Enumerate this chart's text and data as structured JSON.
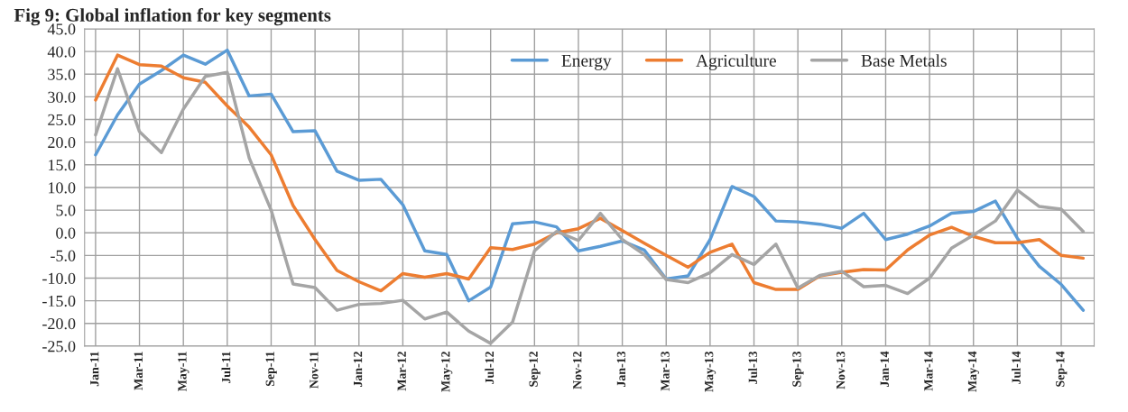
{
  "chart_data": {
    "type": "line",
    "title": "Fig 9: Global inflation for key segments",
    "categories": [
      "Jan-11",
      null,
      "Mar-11",
      null,
      "May-11",
      null,
      "Jul-11",
      null,
      "Sep-11",
      null,
      "Nov-11",
      null,
      "Jan-12",
      null,
      "Mar-12",
      null,
      "May-12",
      null,
      "Jul-12",
      null,
      "Sep-12",
      null,
      "Nov-12",
      null,
      "Jan-13",
      null,
      "Mar-13",
      null,
      "May-13",
      null,
      "Jul-13",
      null,
      "Sep-13",
      null,
      "Nov-13",
      null,
      "Jan-14",
      null,
      "Mar-14",
      null,
      "May-14",
      null,
      "Jul-14",
      null,
      "Sep-14",
      null
    ],
    "series": [
      {
        "name": "Energy",
        "color": "#5b9bd5",
        "values": [
          17.2,
          26,
          32.8,
          35.8,
          39.2,
          37.2,
          40.3,
          30.2,
          30.6,
          22.3,
          22.5,
          13.6,
          11.6,
          11.8,
          6.2,
          -4,
          -4.8,
          -15,
          -12,
          2,
          2.4,
          1.3,
          -4,
          -3,
          -1.8,
          -3.8,
          -10.2,
          -9.5,
          -1.5,
          10.2,
          8,
          2.6,
          2.4,
          1.9,
          1,
          4.3,
          -1.5,
          -0.3,
          1.5,
          4.3,
          4.7,
          7,
          -1.2,
          -7.4,
          -11.4,
          -17.1
        ]
      },
      {
        "name": "Agriculture",
        "color": "#ed7d31",
        "values": [
          29.3,
          39.2,
          37.1,
          36.8,
          34.2,
          33.2,
          28,
          23.3,
          17.2,
          6,
          -1.5,
          -8.3,
          -10.8,
          -12.8,
          -9,
          -9.8,
          -9,
          -10.2,
          -3.3,
          -3.7,
          -2.5,
          0,
          0.9,
          3.2,
          0.5,
          -2.3,
          -5,
          -7.6,
          -4.3,
          -2.5,
          -11,
          -12.5,
          -12.5,
          -9.5,
          -8.7,
          -8.1,
          -8.2,
          -3.8,
          -0.5,
          1.2,
          -0.8,
          -2.2,
          -2.2,
          -1.5,
          -5,
          -5.6
        ]
      },
      {
        "name": "Base Metals",
        "color": "#a5a5a5",
        "values": [
          21.6,
          36.2,
          22.3,
          17.7,
          27.3,
          34.5,
          35.4,
          16.5,
          5,
          -11.3,
          -12.1,
          -17.1,
          -15.8,
          -15.6,
          -14.9,
          -19,
          -17.5,
          -21.7,
          -24.4,
          -19.7,
          -4,
          0.3,
          -1.7,
          4.3,
          -1.5,
          -4.8,
          -10.3,
          -11,
          -8.8,
          -4.8,
          -7,
          -2.5,
          -12.2,
          -9.4,
          -8.5,
          -11.9,
          -11.6,
          -13.4,
          -10,
          -3.4,
          -0.5,
          2.6,
          9.4,
          5.8,
          5.2,
          0.3
        ]
      }
    ],
    "ylim": [
      -25,
      45
    ],
    "yticks": [
      {
        "value": -25,
        "label": "-25.0"
      },
      {
        "value": -20,
        "label": "-20.0"
      },
      {
        "value": -15,
        "label": "-15.0"
      },
      {
        "value": -10,
        "label": "-10.0"
      },
      {
        "value": -5,
        "label": "-5.0"
      },
      {
        "value": 0,
        "label": "0.0"
      },
      {
        "value": 5,
        "label": "5.0"
      },
      {
        "value": 10,
        "label": "10.0"
      },
      {
        "value": 15,
        "label": "15.0"
      },
      {
        "value": 20,
        "label": "20.0"
      },
      {
        "value": 25,
        "label": "25.0"
      },
      {
        "value": 30,
        "label": "30.0"
      },
      {
        "value": 35,
        "label": "35.0"
      },
      {
        "value": 40,
        "label": "40.0"
      },
      {
        "value": 45,
        "label": "45.0"
      }
    ],
    "grid": true,
    "legend": "top right",
    "marker": "none",
    "line_style": "solid"
  }
}
